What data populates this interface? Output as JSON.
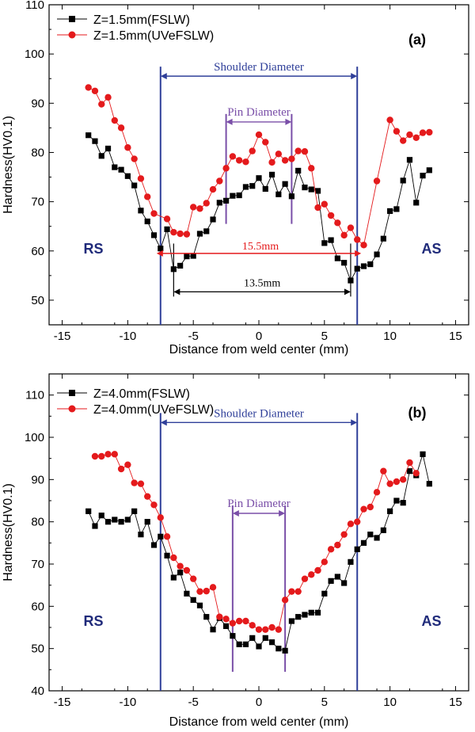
{
  "colors": {
    "fslw": "#000000",
    "uvefslw": "#e41a1c",
    "shoulder": "#2f3f99",
    "pin": "#7a4fa8",
    "label": "#1f2a7a"
  },
  "chart_data": [
    {
      "type": "line",
      "panel_label": "(a)",
      "xlabel": "Distance from weld center (mm)",
      "ylabel": "Hardness(HV0.1)",
      "xlim": [
        -16,
        16
      ],
      "ylim": [
        45,
        110
      ],
      "xticks": [
        -15,
        -10,
        -5,
        0,
        5,
        10,
        15
      ],
      "yticks": [
        50,
        60,
        70,
        80,
        90,
        100,
        110
      ],
      "legend_position": "top-left",
      "series": [
        {
          "name": "Z=1.5mm(FSLW)",
          "color": "#000000",
          "marker": "square",
          "x": [
            -13.0,
            -12.5,
            -12.0,
            -11.5,
            -11.0,
            -10.5,
            -10.0,
            -9.5,
            -9.0,
            -8.5,
            -8.0,
            -7.5,
            -7.0,
            -6.5,
            -6.0,
            -5.5,
            -5.0,
            -4.5,
            -4.0,
            -3.5,
            -3.0,
            -2.5,
            -2.0,
            -1.5,
            -1.0,
            -0.5,
            0.0,
            0.5,
            1.0,
            1.5,
            2.0,
            2.5,
            3.0,
            3.5,
            4.0,
            4.5,
            5.0,
            5.5,
            6.0,
            6.5,
            7.0,
            7.5,
            8.0,
            8.5,
            9.0,
            9.5,
            10.0,
            10.5,
            11.0,
            11.5,
            12.0,
            12.5,
            13.0
          ],
          "values": [
            83.5,
            82.3,
            79.3,
            80.8,
            77.0,
            76.5,
            75.2,
            73.3,
            68.2,
            66.0,
            63.2,
            60.5,
            64.4,
            56.3,
            57.0,
            58.9,
            59.0,
            63.5,
            64.0,
            66.4,
            69.8,
            70.2,
            71.2,
            71.3,
            73.0,
            73.2,
            74.8,
            72.6,
            75.5,
            71.5,
            73.6,
            71.1,
            76.3,
            72.9,
            72.5,
            72.2,
            61.6,
            62.2,
            58.5,
            57.6,
            54.0,
            56.4,
            56.9,
            57.3,
            59.3,
            62.5,
            68.1,
            68.5,
            74.3,
            78.5,
            69.8,
            75.3,
            76.4
          ]
        },
        {
          "name": "Z=1.5mm(UVeFSLW)",
          "color": "#e41a1c",
          "marker": "circle",
          "x": [
            -13.0,
            -12.5,
            -12.0,
            -11.5,
            -11.0,
            -10.5,
            -10.0,
            -9.5,
            -9.0,
            -8.5,
            -8.0,
            -7.0,
            -6.5,
            -6.0,
            -5.5,
            -5.0,
            -4.5,
            -4.0,
            -3.5,
            -3.0,
            -2.5,
            -2.0,
            -1.5,
            -1.0,
            -0.5,
            0.0,
            0.5,
            1.0,
            1.5,
            2.0,
            2.5,
            3.0,
            3.5,
            4.0,
            4.5,
            5.0,
            5.5,
            6.0,
            6.5,
            7.0,
            7.5,
            8.0,
            9.0,
            10.0,
            10.5,
            11.0,
            11.5,
            12.0,
            12.5,
            13.0
          ],
          "values": [
            93.2,
            92.5,
            89.8,
            91.2,
            86.5,
            85.0,
            81.0,
            78.7,
            74.7,
            71.0,
            67.6,
            66.5,
            63.8,
            63.5,
            63.4,
            68.9,
            68.6,
            69.7,
            72.5,
            74.2,
            76.8,
            79.2,
            78.4,
            78.1,
            80.3,
            83.6,
            82.1,
            78.0,
            79.7,
            78.4,
            78.7,
            80.3,
            80.2,
            76.8,
            68.8,
            69.5,
            67.2,
            65.7,
            63.2,
            64.7,
            62.3,
            61.2,
            74.2,
            86.6,
            84.3,
            82.4,
            83.6,
            83.0,
            84.0,
            84.1
          ]
        }
      ],
      "annotations": {
        "shoulder": {
          "label": "Shoulder Diameter",
          "x1": -7.5,
          "x2": 7.5,
          "y": 95.5
        },
        "pin": {
          "label": "Pin Diameter",
          "x1": -2.5,
          "x2": 2.5,
          "y": 86.2
        },
        "span_155": {
          "label": "15.5mm",
          "x1": -7.8,
          "x2": 7.8,
          "y": 59.5
        },
        "span_135": {
          "label": "13.5mm",
          "x1": -6.5,
          "x2": 7.0,
          "y": 51.7
        },
        "rs": "RS",
        "as": "AS"
      }
    },
    {
      "type": "line",
      "panel_label": "(b)",
      "xlabel": "Distance from weld center (mm)",
      "ylabel": "Hardness(HV0.1)",
      "xlim": [
        -16,
        16
      ],
      "ylim": [
        40,
        115
      ],
      "xticks": [
        -15,
        -10,
        -5,
        0,
        5,
        10,
        15
      ],
      "yticks": [
        40,
        50,
        60,
        70,
        80,
        90,
        100,
        110
      ],
      "legend_position": "top-left",
      "series": [
        {
          "name": "Z=4.0mm(FSLW)",
          "color": "#000000",
          "marker": "square",
          "x": [
            -13.0,
            -12.5,
            -12.0,
            -11.5,
            -11.0,
            -10.5,
            -10.0,
            -9.5,
            -9.0,
            -8.5,
            -8.0,
            -7.5,
            -7.0,
            -6.5,
            -6.0,
            -5.5,
            -5.0,
            -4.5,
            -4.0,
            -3.5,
            -3.0,
            -2.5,
            -2.0,
            -1.5,
            -1.0,
            -0.5,
            0.0,
            0.5,
            1.0,
            1.5,
            2.0,
            2.5,
            3.0,
            3.5,
            4.0,
            4.5,
            5.0,
            5.5,
            6.0,
            6.5,
            7.0,
            7.5,
            8.0,
            8.5,
            9.0,
            9.5,
            10.0,
            10.5,
            11.0,
            11.5,
            12.0,
            12.5,
            13.0
          ],
          "values": [
            82.5,
            79.0,
            81.5,
            80.0,
            80.5,
            80.0,
            80.5,
            82.5,
            77.0,
            80.0,
            74.5,
            76.5,
            72.0,
            66.8,
            68.0,
            63.0,
            61.5,
            60.2,
            57.5,
            54.5,
            57.2,
            55.3,
            53.0,
            51.0,
            51.0,
            52.5,
            50.5,
            52.5,
            51.5,
            50.0,
            49.5,
            56.5,
            57.5,
            58.0,
            58.5,
            58.5,
            63.0,
            66.0,
            67.0,
            65.5,
            70.5,
            73.5,
            75.0,
            77.0,
            76.2,
            78.0,
            82.5,
            85.0,
            84.5,
            92.0,
            91.0,
            96.0,
            89.0
          ]
        },
        {
          "name": "Z=4.0mm(UVeFSLW)",
          "color": "#e41a1c",
          "marker": "circle",
          "x": [
            -12.5,
            -12.0,
            -11.5,
            -11.0,
            -10.5,
            -10.0,
            -9.5,
            -9.0,
            -8.5,
            -8.0,
            -7.5,
            -7.0,
            -6.5,
            -6.0,
            -5.5,
            -5.0,
            -4.5,
            -4.0,
            -3.5,
            -3.0,
            -2.5,
            -2.0,
            -1.5,
            -1.0,
            -0.5,
            0.0,
            0.5,
            1.0,
            1.5,
            2.0,
            2.5,
            3.0,
            3.5,
            4.0,
            4.5,
            5.0,
            5.5,
            6.0,
            6.5,
            7.0,
            7.5,
            8.0,
            8.5,
            9.0,
            9.5,
            10.0,
            10.5,
            11.0,
            11.5,
            12.0
          ],
          "values": [
            95.5,
            95.5,
            96.0,
            96.0,
            92.5,
            93.5,
            89.2,
            89.0,
            86.0,
            84.0,
            81.0,
            76.5,
            71.5,
            69.5,
            68.5,
            66.5,
            63.5,
            63.6,
            64.5,
            57.5,
            57.0,
            56.0,
            56.5,
            56.5,
            55.5,
            54.5,
            54.5,
            55.0,
            54.5,
            61.5,
            63.5,
            63.5,
            66.5,
            67.5,
            68.5,
            70.5,
            73.5,
            74.5,
            77.0,
            79.5,
            80.0,
            83.0,
            83.5,
            87.0,
            92.0,
            89.0,
            89.5,
            90.0,
            94.0,
            91.5
          ]
        }
      ],
      "annotations": {
        "shoulder": {
          "label": "Shoulder Diameter",
          "x1": -7.5,
          "x2": 7.5,
          "y": 103.5
        },
        "pin": {
          "label": "Pin Diameter",
          "x1": -2.0,
          "x2": 2.0,
          "y": 82.0
        },
        "rs": "RS",
        "as": "AS"
      }
    }
  ]
}
